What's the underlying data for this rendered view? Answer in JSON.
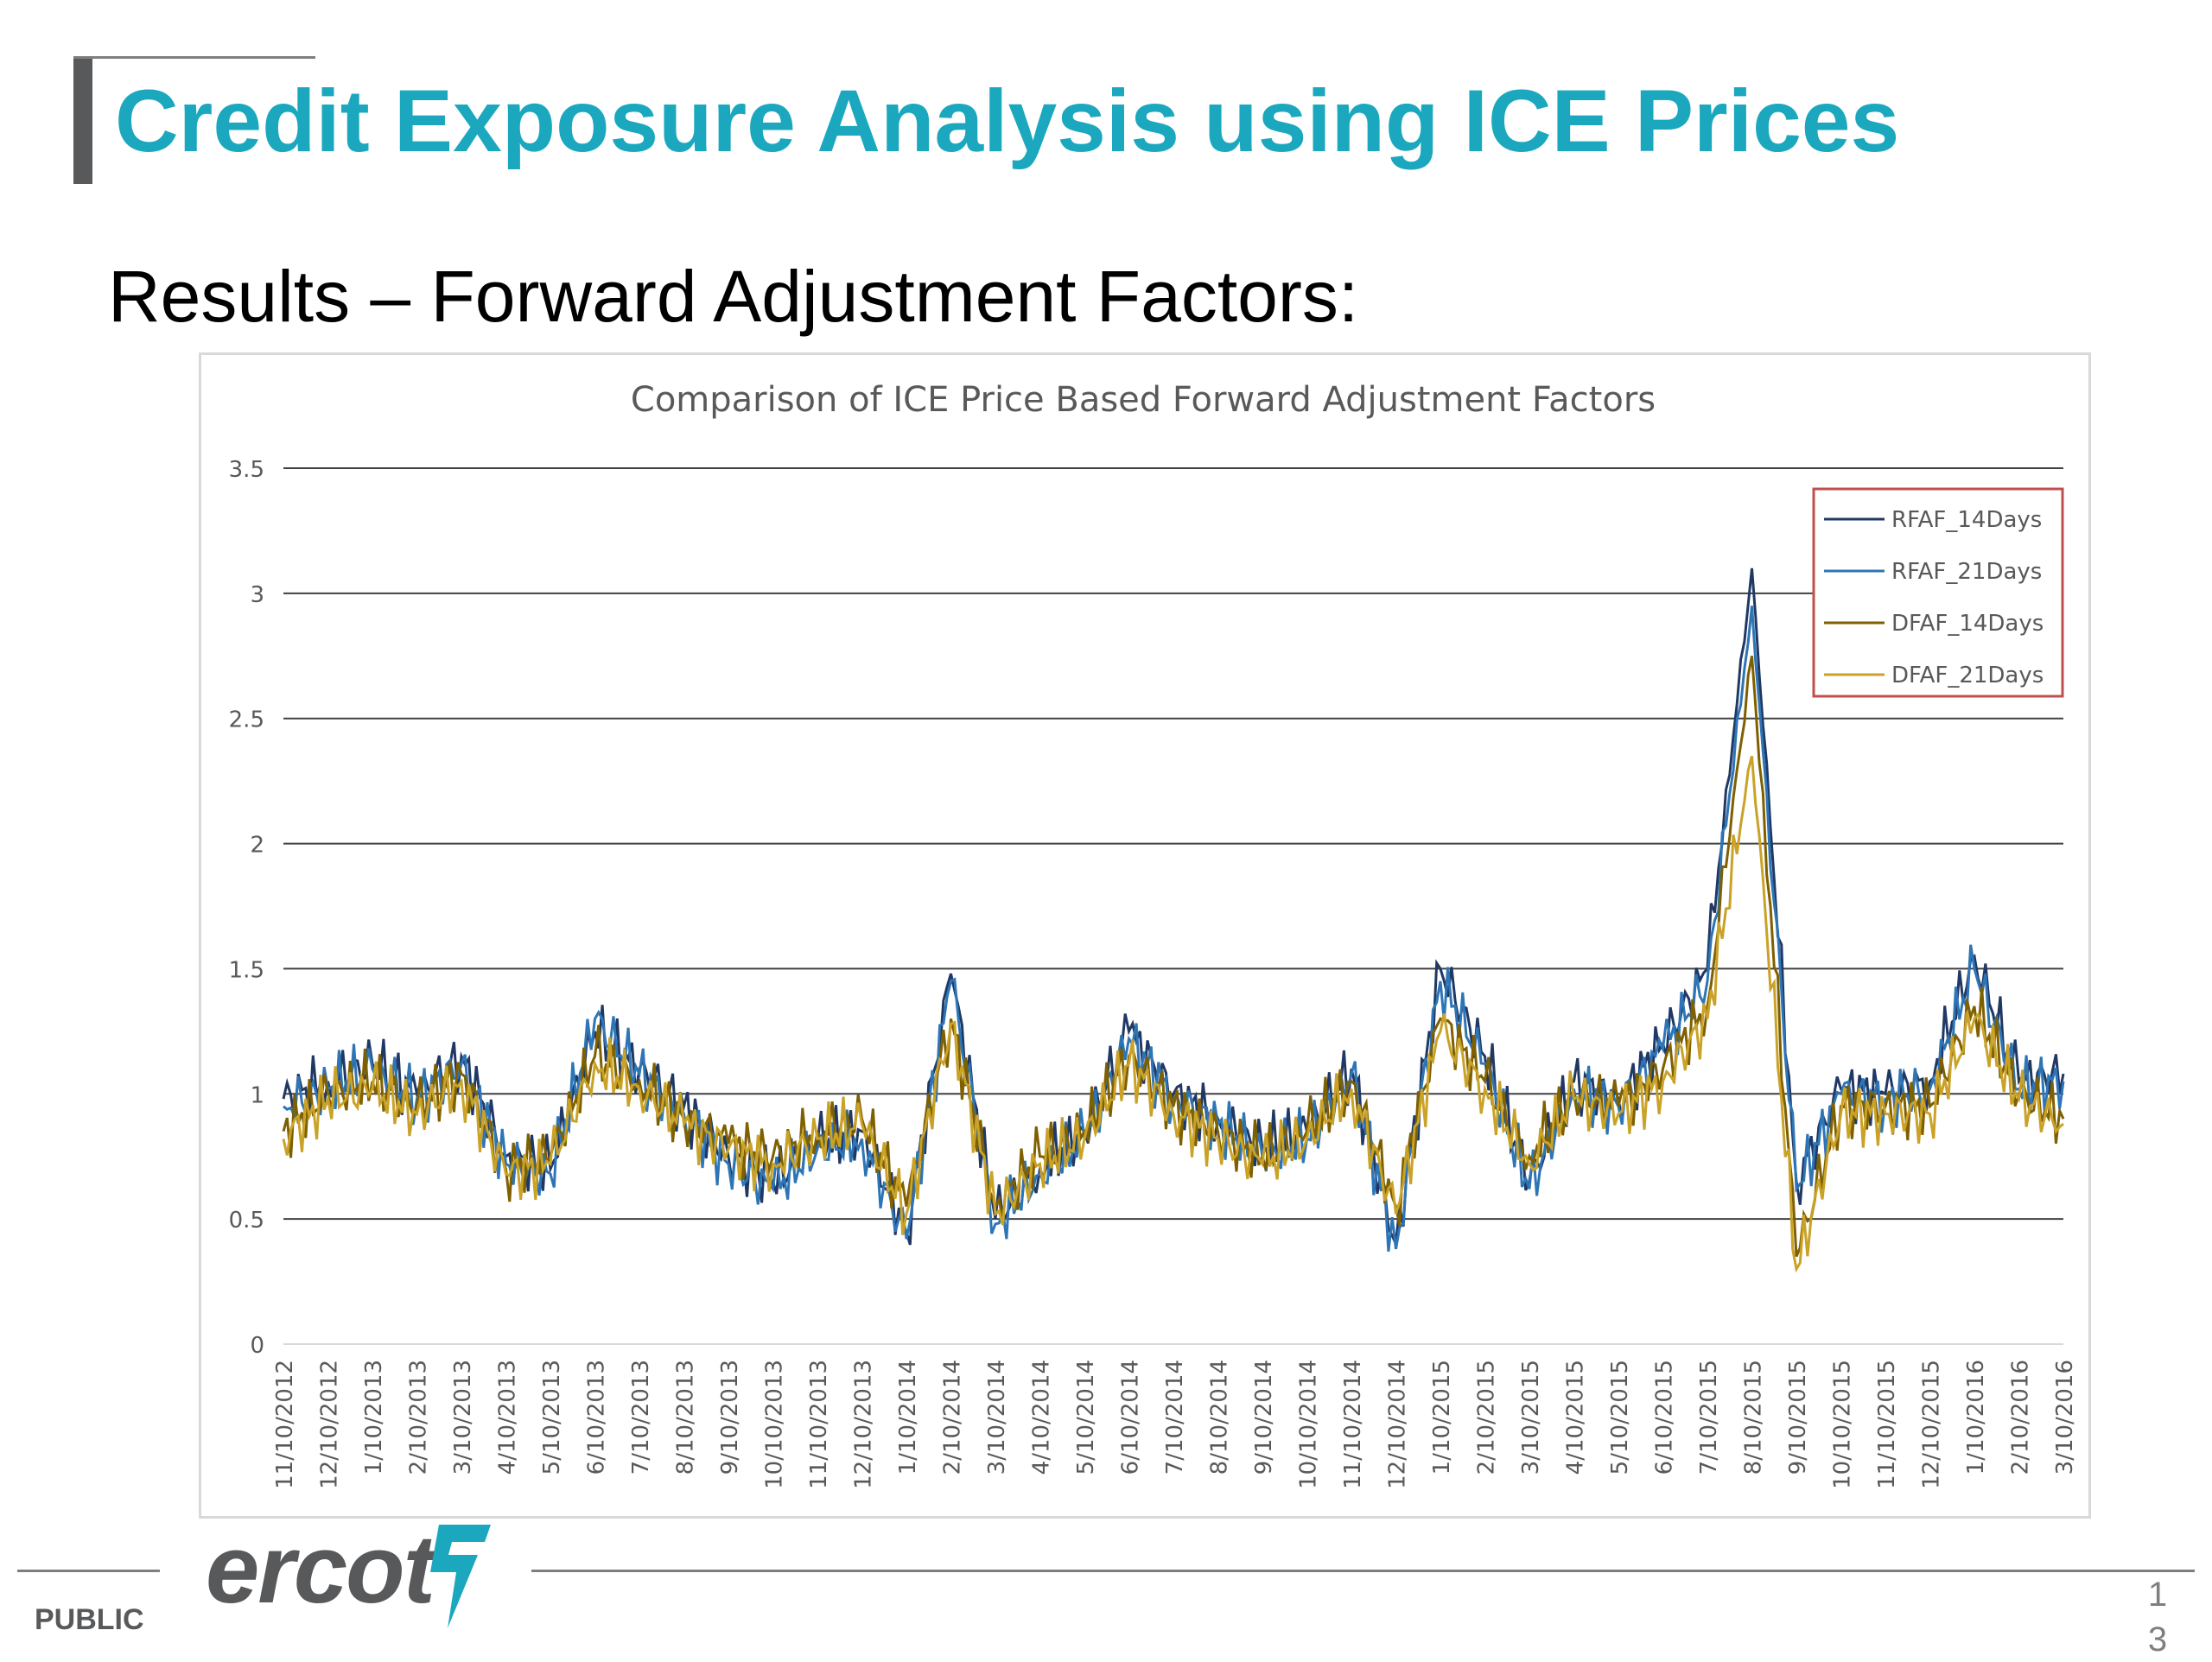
{
  "slide": {
    "title": "Credit Exposure Analysis using ICE Prices",
    "subtitle": "Results – Forward Adjustment Factors:",
    "footer_label": "PUBLIC",
    "logo_text": "ercot",
    "page_number_line1": "1",
    "page_number_line2": "3"
  },
  "chart_data": {
    "type": "line",
    "title": "Comparison of ICE Price Based Forward Adjustment Factors",
    "xlabel": "",
    "ylabel": "",
    "ylim": [
      0,
      3.5
    ],
    "yticks": [
      "0",
      "0.5",
      "1",
      "1.5",
      "2",
      "2.5",
      "3",
      "3.5"
    ],
    "grid": true,
    "legend_position": "top-right",
    "categories": [
      "11/10/2012",
      "12/10/2012",
      "1/10/2013",
      "2/10/2013",
      "3/10/2013",
      "4/10/2013",
      "5/10/2013",
      "6/10/2013",
      "7/10/2013",
      "8/10/2013",
      "9/10/2013",
      "10/10/2013",
      "11/10/2013",
      "12/10/2013",
      "1/10/2014",
      "2/10/2014",
      "3/10/2014",
      "4/10/2014",
      "5/10/2014",
      "6/10/2014",
      "7/10/2014",
      "8/10/2014",
      "9/10/2014",
      "10/10/2014",
      "11/10/2014",
      "12/10/2014",
      "1/10/2015",
      "2/10/2015",
      "3/10/2015",
      "4/10/2015",
      "5/10/2015",
      "6/10/2015",
      "7/10/2015",
      "8/10/2015",
      "9/10/2015",
      "10/10/2015",
      "11/10/2015",
      "12/10/2015",
      "1/10/2016",
      "2/10/2016",
      "3/10/2016"
    ],
    "series": [
      {
        "name": "RFAF_14Days",
        "color": "#1f3864",
        "values": [
          0.98,
          1.05,
          1.12,
          1.0,
          1.15,
          0.75,
          0.7,
          1.25,
          1.1,
          0.95,
          0.75,
          0.65,
          0.8,
          0.85,
          0.45,
          1.48,
          0.5,
          0.7,
          0.85,
          1.25,
          1.0,
          0.9,
          0.78,
          0.85,
          1.1,
          0.4,
          1.5,
          1.15,
          0.65,
          1.05,
          0.98,
          1.2,
          1.5,
          3.1,
          0.65,
          1.02,
          1.0,
          1.05,
          1.55,
          1.05,
          1.08
        ]
      },
      {
        "name": "RFAF_21Days",
        "color": "#2e75b6",
        "values": [
          0.95,
          1.02,
          1.1,
          0.98,
          1.12,
          0.72,
          0.68,
          1.3,
          1.08,
          0.92,
          0.72,
          0.62,
          0.78,
          0.82,
          0.42,
          1.45,
          0.48,
          0.68,
          0.82,
          1.22,
          0.98,
          0.88,
          0.75,
          0.82,
          1.08,
          0.38,
          1.45,
          1.12,
          0.62,
          1.02,
          0.95,
          1.18,
          1.45,
          2.95,
          0.62,
          1.0,
          0.98,
          1.02,
          1.5,
          1.02,
          1.05
        ]
      },
      {
        "name": "DFAF_14Days",
        "color": "#7f6000",
        "values": [
          0.85,
          1.0,
          1.05,
          0.95,
          1.08,
          0.7,
          0.75,
          1.15,
          1.05,
          0.9,
          0.8,
          0.75,
          0.85,
          0.9,
          0.55,
          1.3,
          0.55,
          0.75,
          0.85,
          1.15,
          0.95,
          0.85,
          0.75,
          0.85,
          1.05,
          0.55,
          1.3,
          1.05,
          0.75,
          1.0,
          0.95,
          1.1,
          1.35,
          2.75,
          0.35,
          0.95,
          0.95,
          0.95,
          1.35,
          1.0,
          0.9
        ]
      },
      {
        "name": "DFAF_21Days",
        "color": "#c9a227",
        "values": [
          0.82,
          0.98,
          1.02,
          0.92,
          1.05,
          0.68,
          0.72,
          1.12,
          1.02,
          0.88,
          0.78,
          0.72,
          0.82,
          0.88,
          0.52,
          1.28,
          0.52,
          0.72,
          0.82,
          1.12,
          0.92,
          0.82,
          0.72,
          0.82,
          1.02,
          0.52,
          1.25,
          1.02,
          0.72,
          0.98,
          0.92,
          1.05,
          1.3,
          2.35,
          0.3,
          0.92,
          0.92,
          0.92,
          1.3,
          0.98,
          0.88
        ]
      }
    ]
  }
}
